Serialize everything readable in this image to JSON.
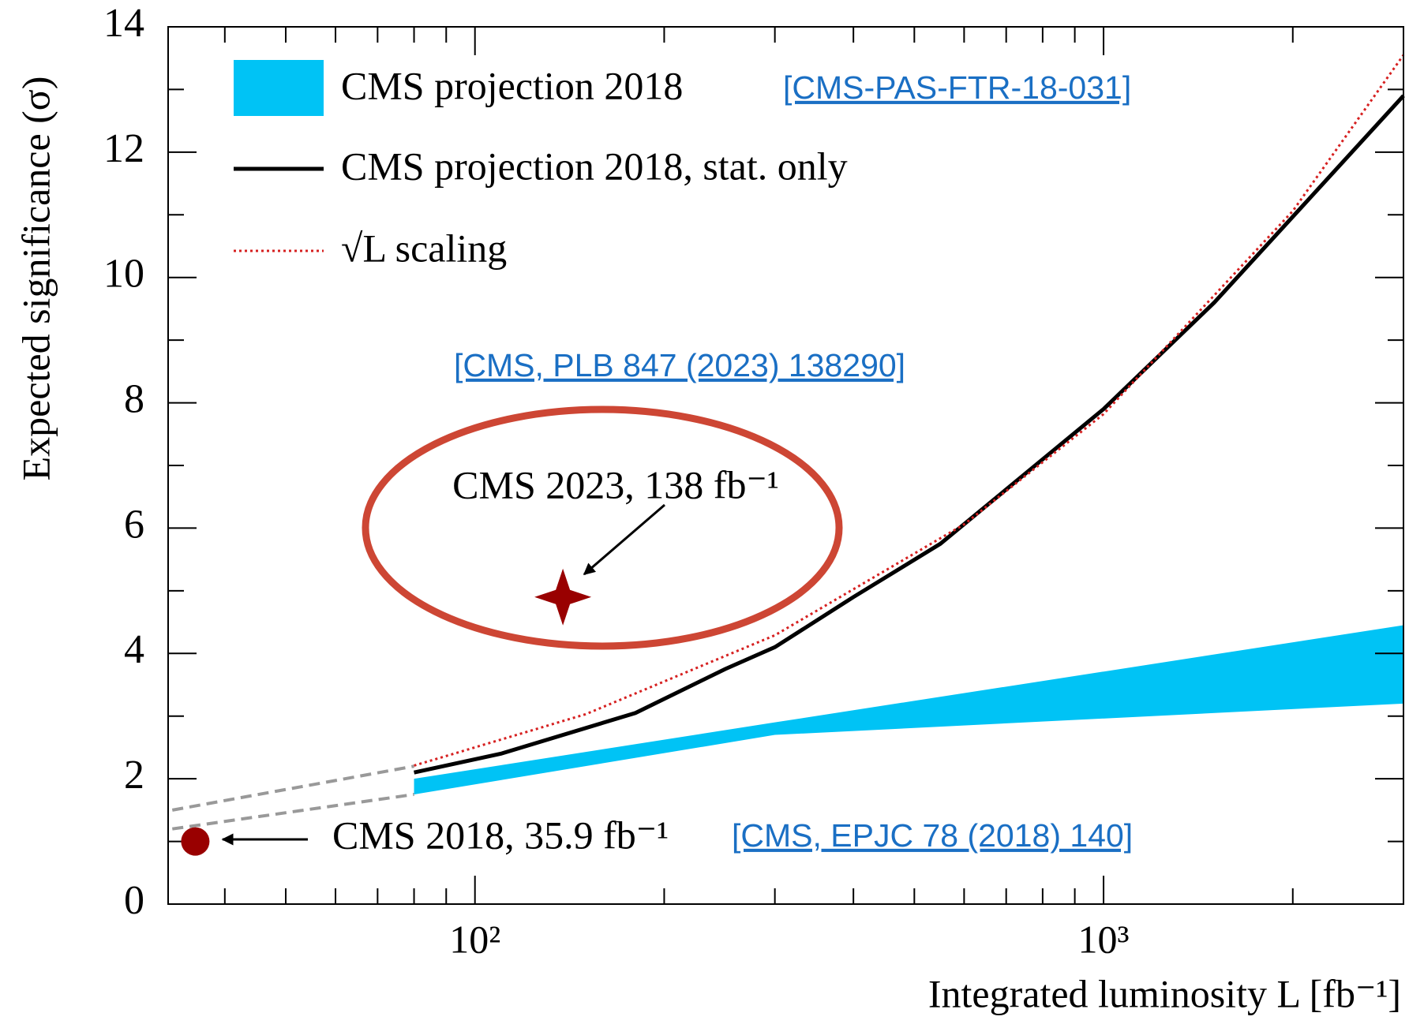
{
  "chart_data": {
    "type": "line",
    "x_label": "Integrated luminosity L [fb⁻¹]",
    "y_label": "Expected significance (σ)",
    "xscale": "log",
    "xlim": [
      32.5,
      3000
    ],
    "ylim": [
      0,
      14
    ],
    "xticks": [
      {
        "value": 100,
        "label": "10²"
      },
      {
        "value": 1000,
        "label": "10³"
      }
    ],
    "xminorticks": [
      40,
      50,
      60,
      70,
      80,
      90,
      200,
      300,
      400,
      500,
      600,
      700,
      800,
      900,
      2000,
      3000
    ],
    "yticks": [
      0,
      2,
      4,
      6,
      8,
      10,
      12,
      14
    ],
    "yminorticks": [
      1,
      3,
      5,
      7,
      9,
      11,
      13
    ],
    "band": {
      "name": "CMS projection 2018",
      "reference": "[CMS-PAS-FTR-18-031]",
      "color": "#00c3f5",
      "x": [
        80,
        300,
        3000
      ],
      "low": [
        1.75,
        2.7,
        3.2
      ],
      "high": [
        2.0,
        2.9,
        4.45
      ]
    },
    "series": [
      {
        "name": "CMS projection 2018, stat. only",
        "color": "#000000",
        "style": "solid",
        "x": [
          80,
          110,
          180,
          250,
          300,
          400,
          550,
          1000,
          1500,
          3000
        ],
        "values": [
          2.1,
          2.4,
          3.05,
          3.75,
          4.1,
          4.9,
          5.75,
          7.9,
          9.6,
          12.9
        ]
      },
      {
        "name": "√L scaling",
        "color": "#d62020",
        "style": "dotted",
        "x": [
          80,
          150,
          300,
          600,
          1000,
          2000,
          3000
        ],
        "values": [
          2.21,
          3.03,
          4.29,
          6.06,
          7.82,
          11.06,
          13.55
        ]
      }
    ],
    "extrapolation": {
      "color": "#999999",
      "lines": [
        {
          "x": [
            33,
            80
          ],
          "values": [
            1.5,
            2.2
          ]
        },
        {
          "x": [
            33,
            80
          ],
          "values": [
            1.2,
            1.75
          ]
        }
      ]
    },
    "points": [
      {
        "label": "CMS 2018, 35.9 fb⁻¹",
        "reference": "[CMS, EPJC 78 (2018) 140]",
        "marker": "circle",
        "color": "#990000",
        "x": 35.9,
        "value": 1.0
      },
      {
        "label": "CMS 2023, 138 fb⁻¹",
        "reference": "[CMS, PLB 847 (2023) 138290]",
        "marker": "star",
        "color": "#990000",
        "x": 138,
        "value": 4.9
      }
    ]
  }
}
